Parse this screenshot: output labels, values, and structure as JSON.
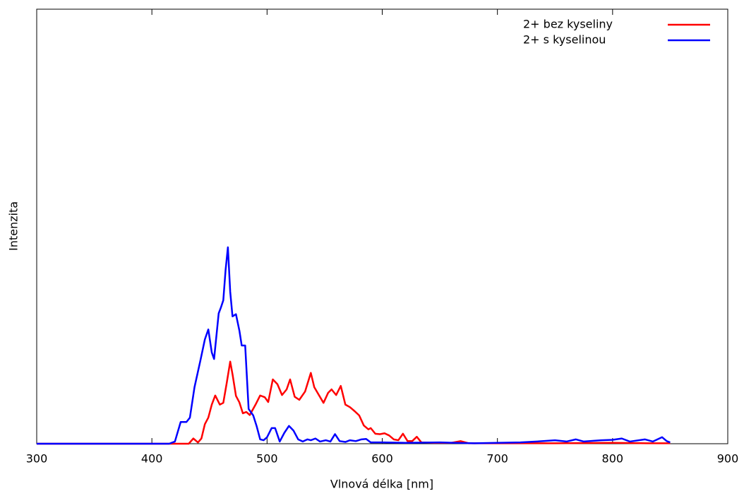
{
  "chart_data": {
    "type": "line",
    "x_label": "Vlnová délka [nm]",
    "y_label": "Intenzita",
    "xlim": [
      300,
      900
    ],
    "xticks": [
      300,
      400,
      500,
      600,
      700,
      800,
      900
    ],
    "ylim": [
      0,
      100
    ],
    "legend": "upper-right",
    "series": [
      {
        "name": "2+ bez kyseliny",
        "color": "#ff0000",
        "x": [
          300,
          425,
          432,
          436,
          440,
          443,
          446,
          449,
          452,
          455,
          459,
          462,
          465,
          468,
          470,
          473,
          476,
          479,
          482,
          485,
          490,
          494,
          498,
          501,
          505,
          509,
          513,
          517,
          520,
          524,
          528,
          533,
          538,
          541,
          545,
          549,
          553,
          556,
          560,
          564,
          568,
          572,
          576,
          580,
          584,
          588,
          590,
          594,
          598,
          602,
          606,
          610,
          614,
          618,
          622,
          626,
          630,
          634,
          645,
          660,
          668,
          675,
          700,
          750,
          800,
          830,
          850
        ],
        "values": [
          0,
          0,
          0,
          1.2,
          0.3,
          1.2,
          4.5,
          6,
          9,
          11.1,
          9,
          9.4,
          14,
          18.9,
          16,
          11,
          9.5,
          7,
          7.3,
          6.6,
          9,
          11.1,
          10.7,
          9.6,
          14.8,
          13.7,
          11.2,
          12.5,
          14.8,
          10.8,
          10.1,
          12,
          16.3,
          13,
          11.2,
          9.4,
          11.7,
          12.5,
          11.2,
          13.3,
          9,
          8.4,
          7.5,
          6.5,
          4.2,
          3.3,
          3.6,
          2.3,
          2.2,
          2.4,
          1.9,
          1,
          0.8,
          2.3,
          0.6,
          0.6,
          1.6,
          0.3,
          0.2,
          0.2,
          0.6,
          0.1,
          0.1,
          0.1,
          0.2,
          0.1,
          0.1
        ]
      },
      {
        "name": "2+ s kyselinou",
        "color": "#0000ff",
        "x": [
          300,
          400,
          415,
          420,
          425,
          430,
          433,
          437,
          442,
          446,
          449,
          452,
          454,
          458,
          460,
          462,
          464,
          466,
          468,
          470,
          473,
          476,
          478,
          481,
          484,
          488,
          491,
          494,
          497,
          500,
          504,
          507,
          511,
          515,
          519,
          523,
          527,
          531,
          535,
          538,
          542,
          546,
          551,
          555,
          559,
          563,
          568,
          572,
          577,
          582,
          586,
          590,
          600,
          620,
          650,
          680,
          700,
          720,
          740,
          750,
          760,
          768,
          775,
          790,
          800,
          808,
          815,
          828,
          835,
          843,
          847,
          850
        ],
        "values": [
          0,
          0,
          0,
          0.5,
          5,
          5,
          6,
          13,
          19,
          24,
          26.3,
          21,
          19.5,
          30,
          31.4,
          33,
          40,
          45.2,
          35,
          29.3,
          29.8,
          26,
          22.6,
          22.6,
          8,
          6.5,
          4,
          1,
          0.8,
          1.5,
          3.6,
          3.6,
          0.5,
          2.5,
          4.1,
          3,
          1,
          0.5,
          1,
          0.8,
          1.2,
          0.5,
          0.8,
          0.5,
          2.2,
          0.6,
          0.4,
          0.8,
          0.6,
          1,
          1.1,
          0.3,
          0.3,
          0.2,
          0.3,
          0.1,
          0.2,
          0.3,
          0.6,
          0.8,
          0.5,
          1,
          0.5,
          0.8,
          0.9,
          1.2,
          0.5,
          1,
          0.5,
          1.5,
          0.6,
          0.3
        ]
      }
    ]
  }
}
